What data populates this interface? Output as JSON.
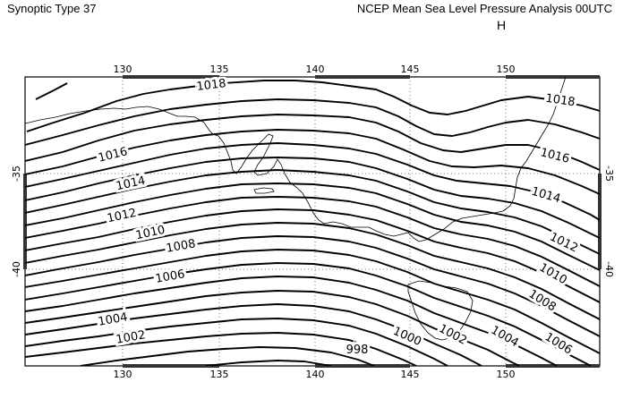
{
  "header": {
    "left_title": "Synoptic Type 37",
    "right_title": "NCEP Mean Sea Level Pressure Analysis 00UTC",
    "high_marker": "H"
  },
  "map": {
    "lon_ticks": [
      "130",
      "135",
      "140",
      "145",
      "150"
    ],
    "lat_ticks": [
      "-35",
      "-40"
    ],
    "isobar_labels": {
      "l1018a": "1018",
      "l1018b": "1018",
      "l1016a": "1016",
      "l1016b": "1016",
      "l1014a": "1014",
      "l1014b": "1014",
      "l1012a": "1012",
      "l1012b": "1012",
      "l1010a": "1010",
      "l1010b": "1010",
      "l1008a": "1008",
      "l1008b": "1008",
      "l1006a": "1006",
      "l1006b": "1006",
      "l1004a": "1004",
      "l1004b": "1004",
      "l1002a": "1002",
      "l1002b": "1002",
      "l1000": "1000",
      "l998": "998"
    },
    "colors": {
      "isobar": "#000000",
      "coast": "#000000",
      "frame": "#000000",
      "grid": "#555555"
    }
  }
}
